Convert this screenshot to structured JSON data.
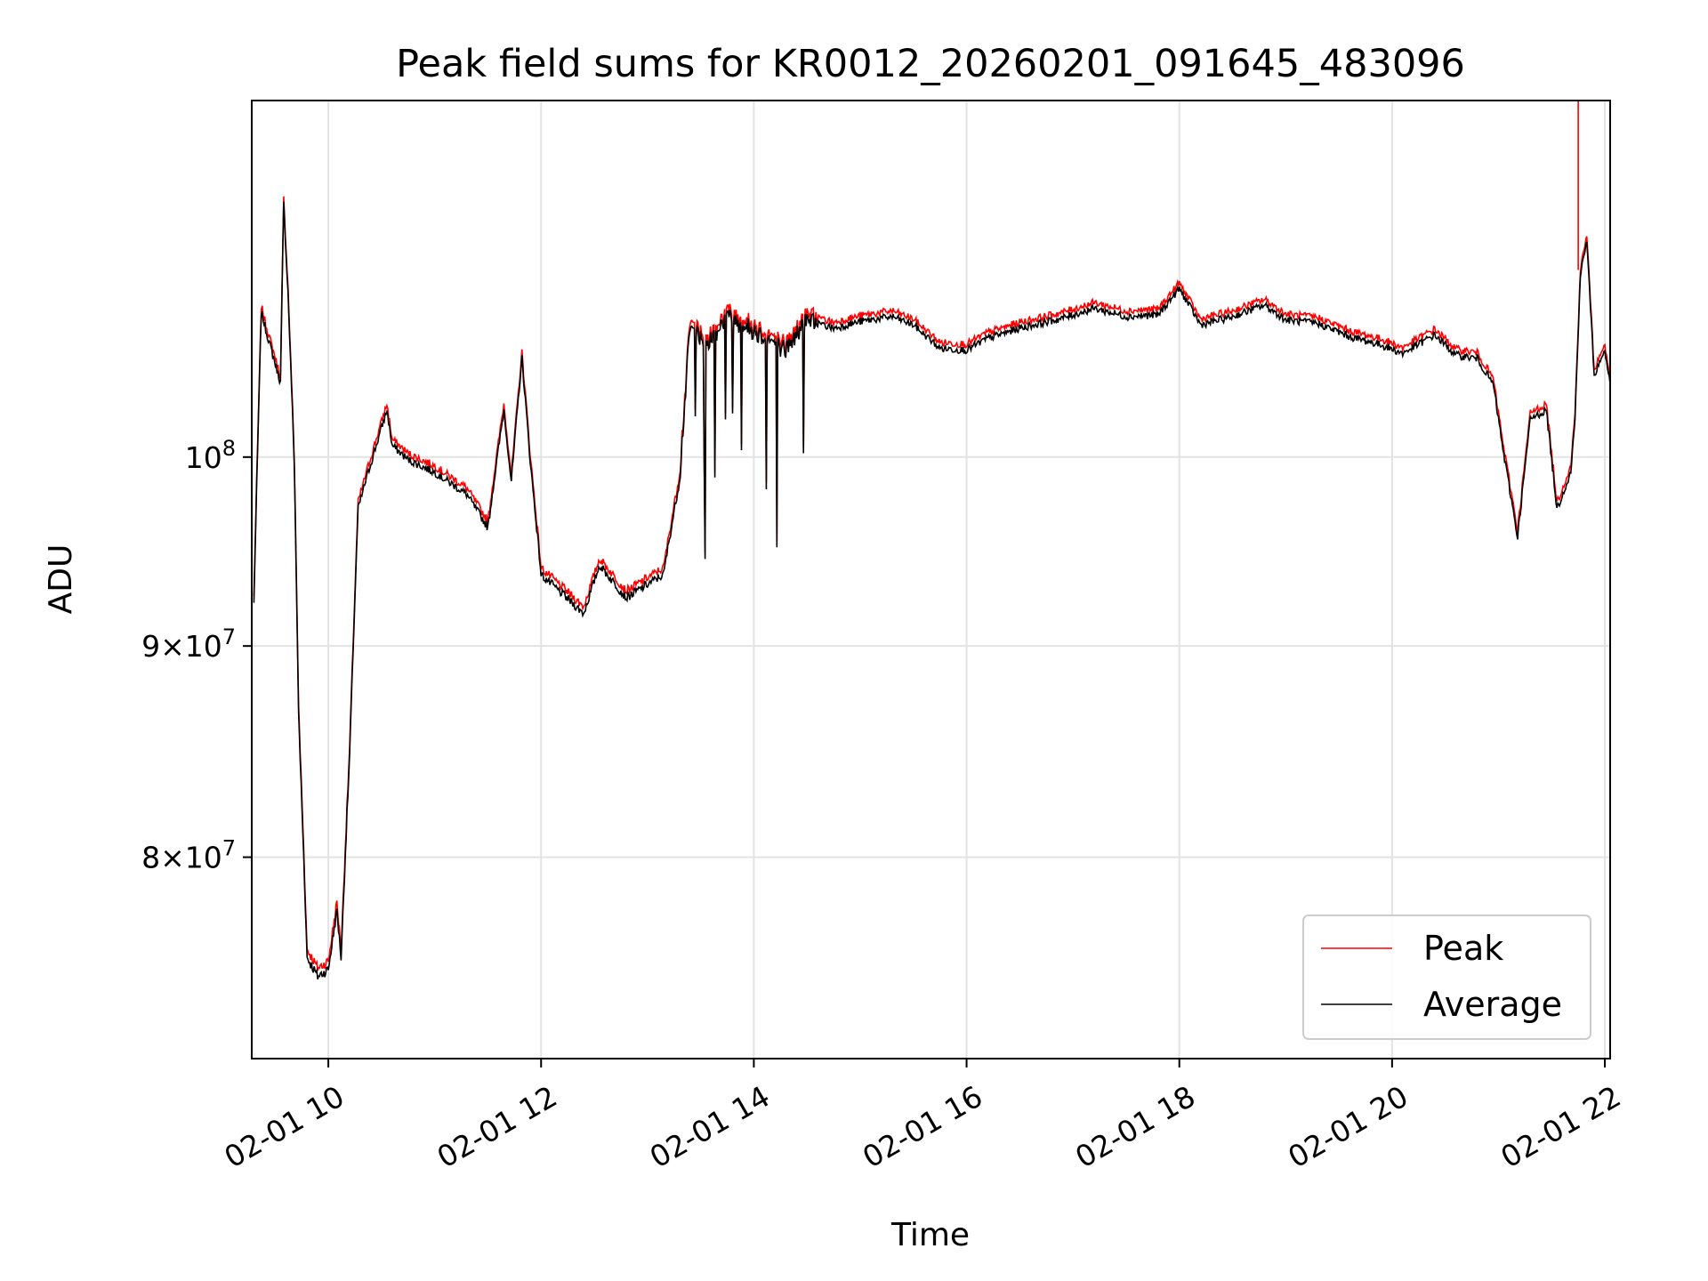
{
  "chart_data": {
    "type": "line",
    "title": "Peak field sums for KR0012_20260201_091645_483096",
    "xlabel": "Time",
    "ylabel": "ADU",
    "yscale": "log",
    "xlim_hours": [
      9.28,
      22.05
    ],
    "ylim": [
      71500000,
      122000000
    ],
    "grid": true,
    "x_ticks": [
      {
        "hour": 10,
        "label": "02-01 10"
      },
      {
        "hour": 12,
        "label": "02-01 12"
      },
      {
        "hour": 14,
        "label": "02-01 14"
      },
      {
        "hour": 16,
        "label": "02-01 16"
      },
      {
        "hour": 18,
        "label": "02-01 18"
      },
      {
        "hour": 20,
        "label": "02-01 20"
      },
      {
        "hour": 22,
        "label": "02-01 22"
      }
    ],
    "y_ticks": [
      {
        "value": 80000000,
        "base": "8",
        "exp": "7"
      },
      {
        "value": 90000000,
        "base": "9",
        "exp": "7"
      },
      {
        "value": 100000000,
        "base": "10",
        "exp": "8"
      }
    ],
    "legend": {
      "position": "lower-right"
    },
    "series": [
      {
        "name": "Peak",
        "color": "#ff0000",
        "spike": {
          "hour": 21.75,
          "value": 122000000
        },
        "points": [
          [
            9.3,
            92.5
          ],
          [
            9.37,
            108.8
          ],
          [
            9.42,
            107.5
          ],
          [
            9.55,
            104.6
          ],
          [
            9.58,
            115.5
          ],
          [
            9.62,
            110
          ],
          [
            9.68,
            100
          ],
          [
            9.72,
            87
          ],
          [
            9.8,
            76
          ],
          [
            9.9,
            75.2
          ],
          [
            10.0,
            75.5
          ],
          [
            10.08,
            78
          ],
          [
            10.12,
            76
          ],
          [
            10.2,
            85
          ],
          [
            10.28,
            97.5
          ],
          [
            10.35,
            99
          ],
          [
            10.45,
            101
          ],
          [
            10.55,
            103
          ],
          [
            10.6,
            101
          ],
          [
            10.75,
            100.2
          ],
          [
            11.0,
            99.5
          ],
          [
            11.3,
            98.3
          ],
          [
            11.5,
            96.5
          ],
          [
            11.65,
            103
          ],
          [
            11.72,
            99
          ],
          [
            11.82,
            106
          ],
          [
            11.9,
            100
          ],
          [
            12.0,
            94
          ],
          [
            12.2,
            93
          ],
          [
            12.4,
            92
          ],
          [
            12.55,
            94.5
          ],
          [
            12.8,
            92.8
          ],
          [
            13.0,
            93.5
          ],
          [
            13.15,
            94
          ],
          [
            13.3,
            99
          ],
          [
            13.4,
            107.8
          ],
          [
            13.55,
            106.8
          ],
          [
            13.75,
            108.5
          ],
          [
            13.9,
            108
          ],
          [
            14.1,
            107.3
          ],
          [
            14.3,
            106.5
          ],
          [
            14.5,
            108.3
          ],
          [
            14.75,
            107.8
          ],
          [
            15.0,
            108.2
          ],
          [
            15.3,
            108.5
          ],
          [
            15.5,
            108
          ],
          [
            15.75,
            106.6
          ],
          [
            16.0,
            106.5
          ],
          [
            16.2,
            107.2
          ],
          [
            16.5,
            107.8
          ],
          [
            16.9,
            108.4
          ],
          [
            17.2,
            109
          ],
          [
            17.5,
            108.5
          ],
          [
            17.8,
            108.6
          ],
          [
            18.0,
            110.2
          ],
          [
            18.2,
            108
          ],
          [
            18.5,
            108.5
          ],
          [
            18.8,
            109.2
          ],
          [
            19.0,
            108.3
          ],
          [
            19.3,
            108.1
          ],
          [
            19.6,
            107.3
          ],
          [
            19.9,
            106.8
          ],
          [
            20.1,
            106.3
          ],
          [
            20.4,
            107.4
          ],
          [
            20.6,
            106.2
          ],
          [
            20.8,
            106
          ],
          [
            20.95,
            104.5
          ],
          [
            21.05,
            100.5
          ],
          [
            21.18,
            96
          ],
          [
            21.3,
            102.5
          ],
          [
            21.45,
            103
          ],
          [
            21.55,
            97.5
          ],
          [
            21.68,
            99.5
          ],
          [
            21.72,
            102.5
          ],
          [
            21.77,
            111
          ],
          [
            21.83,
            113.2
          ],
          [
            21.9,
            105
          ],
          [
            22.0,
            106.5
          ],
          [
            22.05,
            104.5
          ]
        ]
      },
      {
        "name": "Average",
        "color": "#000000",
        "points": [
          [
            9.3,
            92.2
          ],
          [
            9.37,
            108.4
          ],
          [
            9.42,
            107.2
          ],
          [
            9.55,
            104.2
          ],
          [
            9.58,
            114.8
          ],
          [
            9.62,
            109.6
          ],
          [
            9.68,
            99.6
          ],
          [
            9.72,
            86.6
          ],
          [
            9.8,
            75.6
          ],
          [
            9.9,
            74.6
          ],
          [
            10.0,
            75
          ],
          [
            10.08,
            77.5
          ],
          [
            10.12,
            75.5
          ],
          [
            10.2,
            84.6
          ],
          [
            10.28,
            97.2
          ],
          [
            10.35,
            98.6
          ],
          [
            10.45,
            100.6
          ],
          [
            10.55,
            102.6
          ],
          [
            10.6,
            100.7
          ],
          [
            10.75,
            99.9
          ],
          [
            11.0,
            99.2
          ],
          [
            11.3,
            98
          ],
          [
            11.5,
            96.2
          ],
          [
            11.65,
            102.6
          ],
          [
            11.72,
            98.6
          ],
          [
            11.82,
            105.6
          ],
          [
            11.9,
            99.6
          ],
          [
            12.0,
            93.6
          ],
          [
            12.2,
            92.6
          ],
          [
            12.4,
            91.6
          ],
          [
            12.55,
            94.2
          ],
          [
            12.8,
            92.5
          ],
          [
            13.0,
            93.2
          ],
          [
            13.15,
            93.7
          ],
          [
            13.3,
            98.6
          ],
          [
            13.4,
            107.4
          ],
          [
            13.55,
            106.4
          ],
          [
            13.75,
            108.1
          ],
          [
            13.9,
            107.6
          ],
          [
            14.1,
            106.9
          ],
          [
            14.3,
            106.1
          ],
          [
            14.5,
            107.9
          ],
          [
            14.75,
            107.4
          ],
          [
            15.0,
            107.8
          ],
          [
            15.3,
            108.1
          ],
          [
            15.5,
            107.6
          ],
          [
            15.75,
            106.2
          ],
          [
            16.0,
            106.1
          ],
          [
            16.2,
            106.8
          ],
          [
            16.5,
            107.4
          ],
          [
            16.9,
            108
          ],
          [
            17.2,
            108.6
          ],
          [
            17.5,
            108.1
          ],
          [
            17.8,
            108.2
          ],
          [
            18.0,
            109.8
          ],
          [
            18.2,
            107.6
          ],
          [
            18.5,
            108.1
          ],
          [
            18.8,
            108.8
          ],
          [
            19.0,
            107.9
          ],
          [
            19.3,
            107.7
          ],
          [
            19.6,
            106.9
          ],
          [
            19.9,
            106.4
          ],
          [
            20.1,
            105.9
          ],
          [
            20.4,
            107
          ],
          [
            20.6,
            105.8
          ],
          [
            20.8,
            105.6
          ],
          [
            20.95,
            104.1
          ],
          [
            21.05,
            100.1
          ],
          [
            21.18,
            95.6
          ],
          [
            21.3,
            102.1
          ],
          [
            21.45,
            102.6
          ],
          [
            21.55,
            97.1
          ],
          [
            21.68,
            99.1
          ],
          [
            21.72,
            102.1
          ],
          [
            21.77,
            110.4
          ],
          [
            21.83,
            112.6
          ],
          [
            21.9,
            104.6
          ],
          [
            22.0,
            106.1
          ],
          [
            22.05,
            104.1
          ]
        ]
      }
    ]
  }
}
